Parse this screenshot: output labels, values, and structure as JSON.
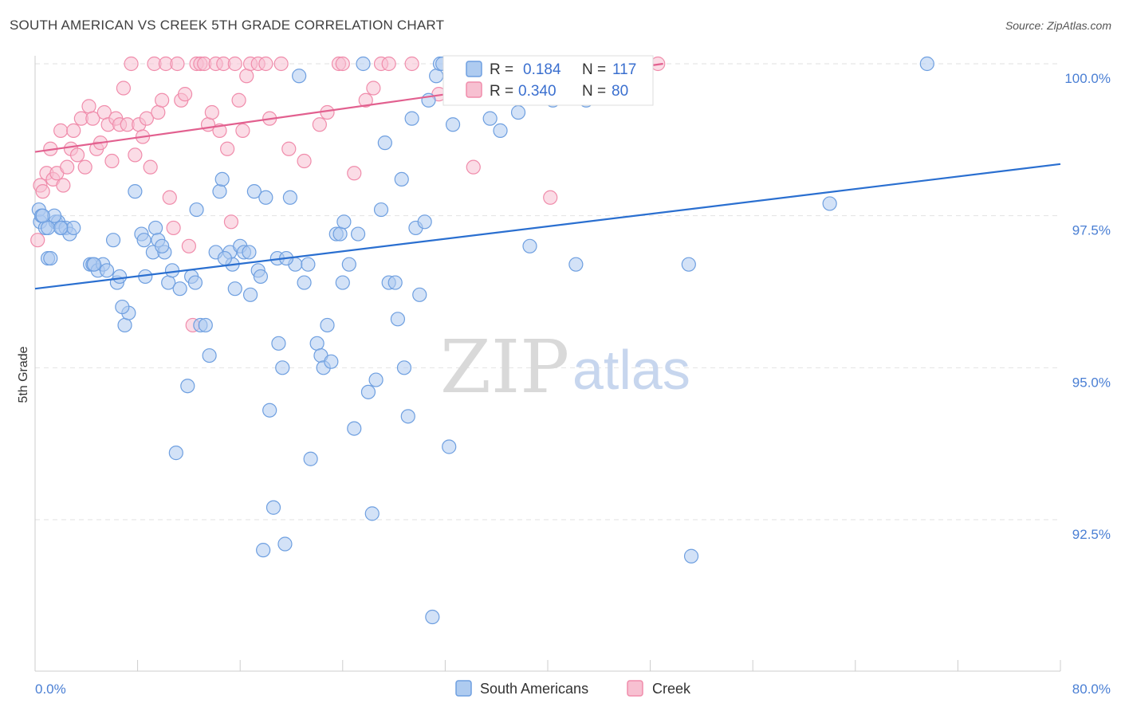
{
  "title": "SOUTH AMERICAN VS CREEK 5TH GRADE CORRELATION CHART",
  "source": "Source: ZipAtlas.com",
  "watermark": {
    "part1": "ZIP",
    "part2": "atlas"
  },
  "chart_data": {
    "type": "scatter",
    "xlabel": "",
    "ylabel": "5th Grade",
    "xlim": [
      0,
      80
    ],
    "ylim": [
      90.0,
      100.2
    ],
    "x_tick_labels": [
      "0.0%",
      "80.0%"
    ],
    "y_ticks": [
      92.5,
      95.0,
      97.5,
      100.0
    ],
    "y_tick_labels": [
      "92.5%",
      "95.0%",
      "97.5%",
      "100.0%"
    ],
    "grid": true,
    "legend_top": [
      {
        "r_label": "R =",
        "r_value": "0.184",
        "n_label": "N =",
        "n_value": "117",
        "color": "#6e9fe0"
      },
      {
        "r_label": "R =",
        "r_value": "0.340",
        "n_label": "N =",
        "n_value": "80",
        "color": "#f08cab"
      }
    ],
    "series": [
      {
        "name": "South Americans",
        "color": "#6e9fe0",
        "fill": "#aecbf0",
        "trend": {
          "x": [
            0,
            80
          ],
          "y": [
            96.3,
            98.35
          ],
          "color": "#2a6fd0"
        },
        "points": [
          [
            0.3,
            97.6
          ],
          [
            0.4,
            97.4
          ],
          [
            0.5,
            97.5
          ],
          [
            0.8,
            97.3
          ],
          [
            1.0,
            96.8
          ],
          [
            1.2,
            96.8
          ],
          [
            1.6,
            97.4
          ],
          [
            1.8,
            97.4
          ],
          [
            2.1,
            97.3
          ],
          [
            2.4,
            97.3
          ],
          [
            2.7,
            97.2
          ],
          [
            3.0,
            97.3
          ],
          [
            4.3,
            96.7
          ],
          [
            4.5,
            96.7
          ],
          [
            4.9,
            96.6
          ],
          [
            5.3,
            96.7
          ],
          [
            5.6,
            96.6
          ],
          [
            6.1,
            97.1
          ],
          [
            6.4,
            96.4
          ],
          [
            6.6,
            96.5
          ],
          [
            7.0,
            95.7
          ],
          [
            7.3,
            95.9
          ],
          [
            7.8,
            97.9
          ],
          [
            8.3,
            97.2
          ],
          [
            8.6,
            96.5
          ],
          [
            9.2,
            96.9
          ],
          [
            9.4,
            97.3
          ],
          [
            9.6,
            97.1
          ],
          [
            10.1,
            96.9
          ],
          [
            10.4,
            96.4
          ],
          [
            10.7,
            96.6
          ],
          [
            11.3,
            96.3
          ],
          [
            11.9,
            94.7
          ],
          [
            12.2,
            96.5
          ],
          [
            12.5,
            96.4
          ],
          [
            12.6,
            97.6
          ],
          [
            12.9,
            95.7
          ],
          [
            13.3,
            95.7
          ],
          [
            13.6,
            95.2
          ],
          [
            14.1,
            96.9
          ],
          [
            14.4,
            97.9
          ],
          [
            14.6,
            98.1
          ],
          [
            15.2,
            96.9
          ],
          [
            15.4,
            96.7
          ],
          [
            15.6,
            96.3
          ],
          [
            16.0,
            97.0
          ],
          [
            16.3,
            96.9
          ],
          [
            16.8,
            96.2
          ],
          [
            17.1,
            97.9
          ],
          [
            17.4,
            96.6
          ],
          [
            17.6,
            96.5
          ],
          [
            18.0,
            97.8
          ],
          [
            18.3,
            94.3
          ],
          [
            18.6,
            92.7
          ],
          [
            18.9,
            96.8
          ],
          [
            19.0,
            95.4
          ],
          [
            19.3,
            95.0
          ],
          [
            19.5,
            92.1
          ],
          [
            19.9,
            97.8
          ],
          [
            20.3,
            96.7
          ],
          [
            20.6,
            99.8
          ],
          [
            21.0,
            96.4
          ],
          [
            21.3,
            96.7
          ],
          [
            21.5,
            93.5
          ],
          [
            22.0,
            95.4
          ],
          [
            22.3,
            95.2
          ],
          [
            22.5,
            95.0
          ],
          [
            22.8,
            95.7
          ],
          [
            23.1,
            95.1
          ],
          [
            23.5,
            97.2
          ],
          [
            23.8,
            97.2
          ],
          [
            24.1,
            97.4
          ],
          [
            24.5,
            96.7
          ],
          [
            24.9,
            94.0
          ],
          [
            25.2,
            97.2
          ],
          [
            25.6,
            100.0
          ],
          [
            26.0,
            94.6
          ],
          [
            26.3,
            92.6
          ],
          [
            26.6,
            94.8
          ],
          [
            27.0,
            97.6
          ],
          [
            27.3,
            98.7
          ],
          [
            27.6,
            96.4
          ],
          [
            28.1,
            96.4
          ],
          [
            28.3,
            95.8
          ],
          [
            28.6,
            98.1
          ],
          [
            28.8,
            95.0
          ],
          [
            29.1,
            94.2
          ],
          [
            29.4,
            99.1
          ],
          [
            29.7,
            97.3
          ],
          [
            30.0,
            96.2
          ],
          [
            30.4,
            97.4
          ],
          [
            30.7,
            99.4
          ],
          [
            31.0,
            90.9
          ],
          [
            31.3,
            99.8
          ],
          [
            31.6,
            100.0
          ],
          [
            31.8,
            100.0
          ],
          [
            32.3,
            93.7
          ],
          [
            32.6,
            99.0
          ],
          [
            33.0,
            99.5
          ],
          [
            35.5,
            99.1
          ],
          [
            36.3,
            98.9
          ],
          [
            37.7,
            99.2
          ],
          [
            39.2,
            100.0
          ],
          [
            40.0,
            100.0
          ],
          [
            40.4,
            99.4
          ],
          [
            42.3,
            100.0
          ],
          [
            43.0,
            99.4
          ],
          [
            1.0,
            97.3
          ],
          [
            1.5,
            97.5
          ],
          [
            2.0,
            97.3
          ],
          [
            8.5,
            97.1
          ],
          [
            11.0,
            93.6
          ],
          [
            17.8,
            92.0
          ],
          [
            38.6,
            97.0
          ],
          [
            42.2,
            96.7
          ],
          [
            51.0,
            96.7
          ],
          [
            51.2,
            91.9
          ],
          [
            62.0,
            97.7
          ],
          [
            69.6,
            100.0
          ],
          [
            0.6,
            97.5
          ],
          [
            6.8,
            96.0
          ],
          [
            9.9,
            97.0
          ],
          [
            14.8,
            96.8
          ],
          [
            24.0,
            96.4
          ],
          [
            19.6,
            96.8
          ],
          [
            16.7,
            96.9
          ],
          [
            4.6,
            96.7
          ]
        ]
      },
      {
        "name": "Creek",
        "color": "#f08cab",
        "fill": "#f7c0d1",
        "trend": {
          "x": [
            0,
            49
          ],
          "y": [
            98.55,
            100.0
          ],
          "color": "#e2608f"
        },
        "points": [
          [
            0.2,
            97.1
          ],
          [
            0.4,
            98.0
          ],
          [
            0.6,
            97.9
          ],
          [
            0.9,
            98.2
          ],
          [
            1.2,
            98.6
          ],
          [
            1.4,
            98.1
          ],
          [
            1.7,
            98.2
          ],
          [
            2.0,
            98.9
          ],
          [
            2.2,
            98.0
          ],
          [
            2.5,
            98.3
          ],
          [
            2.8,
            98.6
          ],
          [
            3.0,
            98.9
          ],
          [
            3.3,
            98.5
          ],
          [
            3.6,
            99.1
          ],
          [
            3.9,
            98.3
          ],
          [
            4.2,
            99.3
          ],
          [
            4.5,
            99.1
          ],
          [
            4.8,
            98.6
          ],
          [
            5.1,
            98.7
          ],
          [
            5.4,
            99.2
          ],
          [
            5.7,
            99.0
          ],
          [
            6.0,
            98.4
          ],
          [
            6.3,
            99.1
          ],
          [
            6.6,
            99.0
          ],
          [
            6.9,
            99.6
          ],
          [
            7.2,
            99.0
          ],
          [
            7.5,
            100.0
          ],
          [
            7.8,
            98.5
          ],
          [
            8.1,
            99.0
          ],
          [
            8.4,
            98.8
          ],
          [
            8.7,
            99.1
          ],
          [
            9.0,
            98.3
          ],
          [
            9.3,
            100.0
          ],
          [
            9.6,
            99.2
          ],
          [
            9.9,
            99.4
          ],
          [
            10.2,
            100.0
          ],
          [
            10.5,
            97.8
          ],
          [
            10.8,
            97.3
          ],
          [
            11.1,
            100.0
          ],
          [
            11.4,
            99.4
          ],
          [
            11.7,
            99.5
          ],
          [
            12.0,
            97.0
          ],
          [
            12.3,
            95.7
          ],
          [
            12.6,
            100.0
          ],
          [
            12.9,
            100.0
          ],
          [
            13.2,
            100.0
          ],
          [
            13.5,
            99.0
          ],
          [
            13.8,
            99.2
          ],
          [
            14.1,
            100.0
          ],
          [
            14.4,
            98.9
          ],
          [
            14.7,
            100.0
          ],
          [
            15.0,
            98.6
          ],
          [
            15.3,
            97.4
          ],
          [
            15.6,
            100.0
          ],
          [
            15.9,
            99.4
          ],
          [
            16.2,
            98.9
          ],
          [
            16.5,
            99.8
          ],
          [
            16.8,
            100.0
          ],
          [
            17.4,
            100.0
          ],
          [
            18.0,
            100.0
          ],
          [
            18.3,
            99.1
          ],
          [
            19.2,
            100.0
          ],
          [
            19.8,
            98.6
          ],
          [
            21.0,
            98.4
          ],
          [
            22.2,
            99.0
          ],
          [
            22.8,
            99.2
          ],
          [
            23.7,
            100.0
          ],
          [
            24.0,
            100.0
          ],
          [
            24.9,
            98.2
          ],
          [
            25.8,
            99.4
          ],
          [
            26.4,
            99.6
          ],
          [
            27.0,
            100.0
          ],
          [
            27.6,
            100.0
          ],
          [
            29.4,
            100.0
          ],
          [
            31.5,
            99.5
          ],
          [
            34.2,
            98.3
          ],
          [
            35.1,
            100.0
          ],
          [
            40.2,
            97.8
          ],
          [
            44.7,
            100.0
          ],
          [
            48.6,
            100.0
          ]
        ]
      }
    ]
  }
}
